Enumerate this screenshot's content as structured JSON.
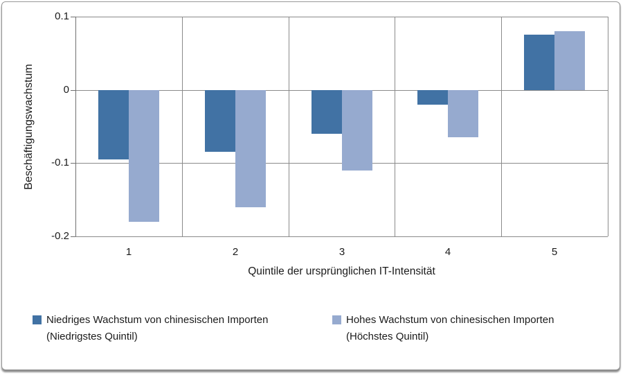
{
  "chart_data": {
    "type": "bar",
    "categories": [
      "1",
      "2",
      "3",
      "4",
      "5"
    ],
    "series": [
      {
        "name": "Niedriges Wachstum von chinesischen Importen (Niedrigstes Quintil)",
        "color": "#4172A4",
        "values": [
          -0.095,
          -0.085,
          -0.06,
          -0.02,
          0.075
        ]
      },
      {
        "name": "Hohes Wachstum von chinesischen Importen (Höchstes Quintil)",
        "color": "#96AACF",
        "values": [
          -0.18,
          -0.16,
          -0.11,
          -0.065,
          0.08
        ]
      }
    ],
    "title": "",
    "xlabel": "Quintile der ursprünglichen IT-Intensität",
    "ylabel": "Beschäftigungswachstum",
    "ylim": [
      -0.2,
      0.1
    ],
    "yticks": [
      0.1,
      0,
      -0.1,
      -0.2
    ],
    "ytick_labels": [
      "0.1",
      "0",
      "-0.1",
      "-0.2"
    ],
    "grid": "both",
    "legend_position": "bottom",
    "colors": {
      "gridline": "#8a8a8a",
      "axis": "#6f6f6f",
      "text": "#1a1a1a"
    }
  }
}
